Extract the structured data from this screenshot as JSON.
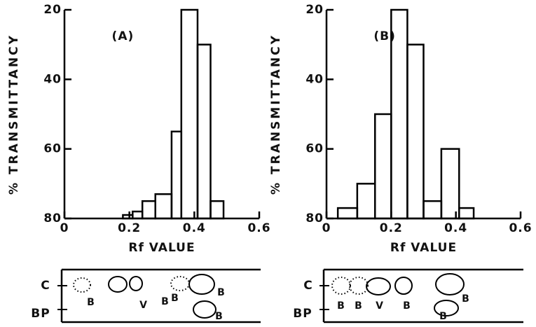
{
  "chart_data": [
    {
      "type": "histogram",
      "annotation": "(A)",
      "xlabel": "Rf VALUE",
      "ylabel": "% TRANSMITTANCY",
      "bins": [
        0.18,
        0.21,
        0.24,
        0.28,
        0.33,
        0.36,
        0.41,
        0.45,
        0.49
      ],
      "counts": [
        79,
        78,
        75,
        73,
        55,
        20,
        30,
        75
      ],
      "xlim": [
        0,
        0.6
      ],
      "xticks": [
        0,
        0.2,
        0.4,
        0.6
      ],
      "ylim": [
        80,
        20
      ],
      "yticks": [
        20,
        40,
        60,
        80
      ],
      "color": "#000000"
    },
    {
      "type": "histogram",
      "annotation": "(B)",
      "xlabel": "Rf VALUE",
      "ylabel": "% TRANSMITTANCY",
      "bins": [
        0.035,
        0.095,
        0.15,
        0.2,
        0.25,
        0.3,
        0.355,
        0.41,
        0.455
      ],
      "counts": [
        77,
        70,
        50,
        20,
        30,
        75,
        60,
        77
      ],
      "xlim": [
        0,
        0.6
      ],
      "xticks": [
        0,
        0.2,
        0.4,
        0.6
      ],
      "ylim": [
        80,
        20
      ],
      "yticks": [
        20,
        40,
        60,
        80
      ],
      "color": "#000000"
    }
  ],
  "plates": [
    {
      "row_labels": [
        "C",
        "BP"
      ],
      "spot_labels": [
        "B",
        "V",
        "B",
        "B",
        "B",
        "B"
      ]
    },
    {
      "row_labels": [
        "C",
        "BP"
      ],
      "spot_labels": [
        "B",
        "B",
        "V",
        "B",
        "B",
        "B"
      ]
    }
  ]
}
